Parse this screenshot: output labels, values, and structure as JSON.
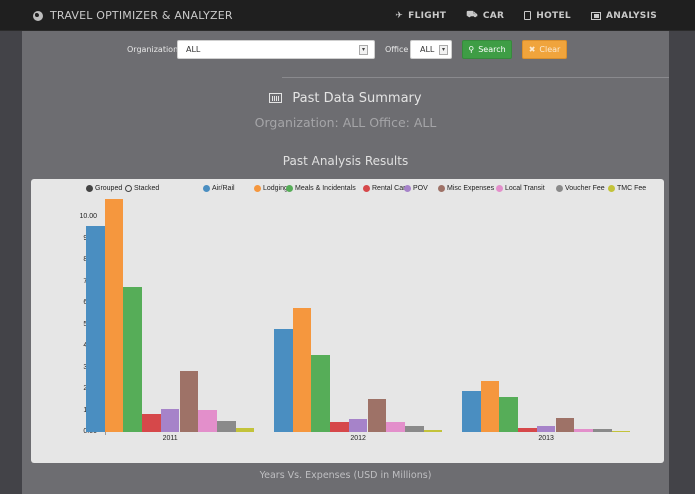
{
  "header": {
    "app_title": "TRAVEL OPTIMIZER & ANALYZER",
    "brand_icon": "globe-icon",
    "nav": [
      {
        "label": "FLIGHT",
        "icon": "plane-icon"
      },
      {
        "label": "CAR",
        "icon": "car-icon"
      },
      {
        "label": "HOTEL",
        "icon": "building-icon"
      },
      {
        "label": "ANALYSIS",
        "icon": "chart-icon"
      }
    ]
  },
  "filters": {
    "organization_label": "Organization",
    "organization_value": "ALL",
    "office_label": "Office",
    "office_value": "ALL",
    "search_label": "Search",
    "clear_label": "Clear"
  },
  "summary": {
    "title": "Past Data Summary",
    "subtitle": "Organization: ALL Office: ALL",
    "results_title": "Past Analysis Results",
    "caption": "Years Vs. Expenses (USD in Millions)"
  },
  "chart_controls": {
    "grouped_label": "Grouped",
    "stacked_label": "Stacked",
    "selected": "Grouped"
  },
  "colors": {
    "search_button": "#3e9d45",
    "clear_button": "#f0a43c",
    "topbar": "#1f1f1f",
    "page_bg": "#6d6d71"
  },
  "chart_data": {
    "type": "bar",
    "mode": "grouped",
    "title": "Past Analysis Results",
    "xlabel": "Years Vs. Expenses (USD in Millions)",
    "ylabel": "",
    "ylim": [
      0,
      11
    ],
    "yticks": [
      "0.00",
      "1.00",
      "2.00",
      "3.00",
      "4.00",
      "5.00",
      "6.00",
      "7.00",
      "8.00",
      "9.00",
      "10.00"
    ],
    "grid": false,
    "legend_position": "top",
    "categories": [
      "2011",
      "2012",
      "2013"
    ],
    "series": [
      {
        "name": "Air/Rail",
        "color": "#4a8ec1",
        "values": [
          9.58,
          4.79,
          1.91
        ]
      },
      {
        "name": "Lodging",
        "color": "#f5973e",
        "values": [
          10.84,
          5.77,
          2.37
        ]
      },
      {
        "name": "Meals & Incidentals",
        "color": "#56ad58",
        "values": [
          6.74,
          3.58,
          1.63
        ]
      },
      {
        "name": "Rental Car",
        "color": "#d6484a",
        "values": [
          0.84,
          0.47,
          0.19
        ]
      },
      {
        "name": "POV",
        "color": "#a683c9",
        "values": [
          1.07,
          0.6,
          0.28
        ]
      },
      {
        "name": "Misc Expenses",
        "color": "#9e7267",
        "values": [
          2.84,
          1.53,
          0.65
        ]
      },
      {
        "name": "Local Transit",
        "color": "#e38fcb",
        "values": [
          1.02,
          0.47,
          0.14
        ]
      },
      {
        "name": "Voucher Fee",
        "color": "#8a8a8a",
        "values": [
          0.51,
          0.28,
          0.14
        ]
      },
      {
        "name": "TMC Fee",
        "color": "#c3c33a",
        "values": [
          0.19,
          0.09,
          0.05
        ]
      }
    ]
  }
}
